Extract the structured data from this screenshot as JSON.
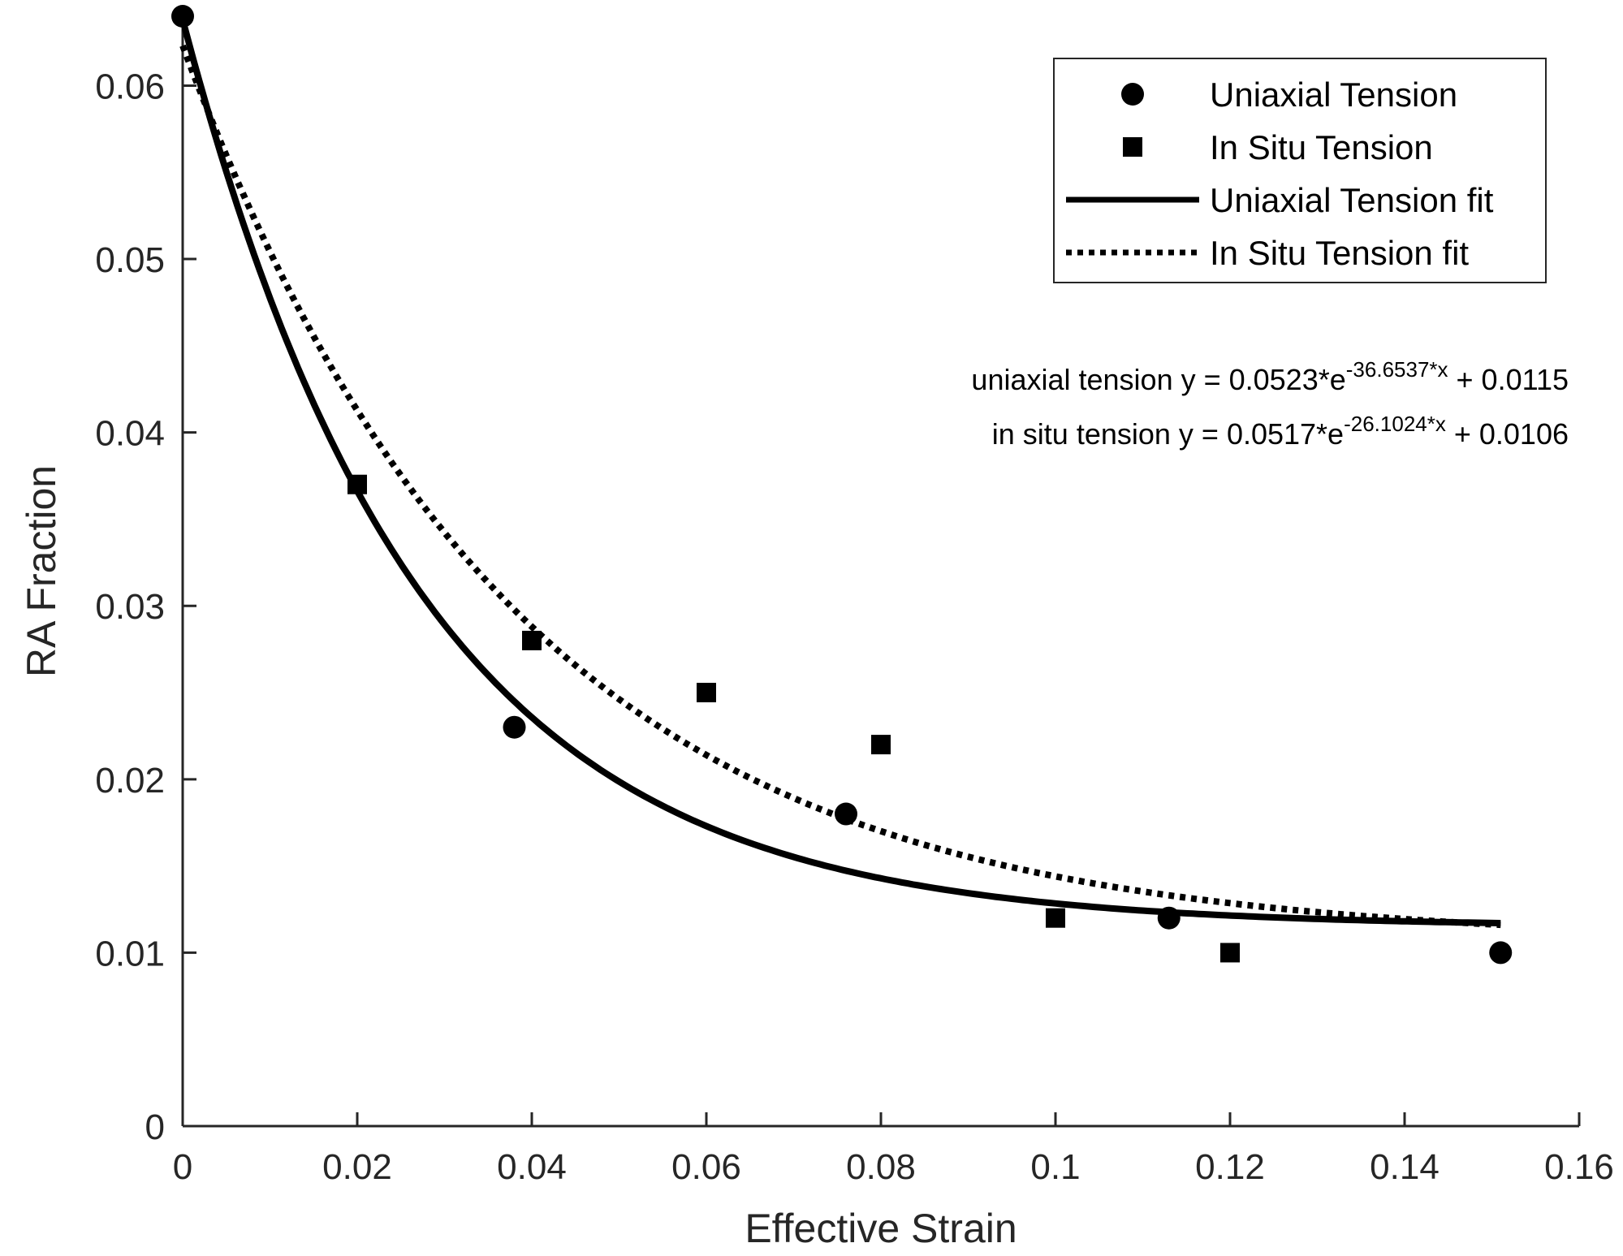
{
  "chart_data": {
    "type": "scatter",
    "xlabel": "Effective Strain",
    "ylabel": "RA Fraction",
    "xlim": [
      0,
      0.16
    ],
    "ylim": [
      0,
      0.064
    ],
    "x_ticks": [
      0,
      0.02,
      0.04,
      0.06,
      0.08,
      0.1,
      0.12,
      0.14,
      0.16
    ],
    "x_tick_labels": [
      "0",
      "0.02",
      "0.04",
      "0.06",
      "0.08",
      "0.1",
      "0.12",
      "0.14",
      "0.16"
    ],
    "y_ticks": [
      0,
      0.01,
      0.02,
      0.03,
      0.04,
      0.05,
      0.06
    ],
    "y_tick_labels": [
      "0",
      "0.01",
      "0.02",
      "0.03",
      "0.04",
      "0.05",
      "0.06"
    ],
    "grid": false,
    "legend_position": "top-right",
    "series": [
      {
        "name": "Uniaxial Tension",
        "kind": "scatter",
        "marker": "circle",
        "points": [
          [
            0,
            0.064
          ],
          [
            0.038,
            0.023
          ],
          [
            0.076,
            0.018
          ],
          [
            0.113,
            0.012
          ],
          [
            0.151,
            0.01
          ]
        ]
      },
      {
        "name": "In Situ Tension",
        "kind": "scatter",
        "marker": "square",
        "points": [
          [
            0.02,
            0.037
          ],
          [
            0.04,
            0.028
          ],
          [
            0.06,
            0.025
          ],
          [
            0.08,
            0.022
          ],
          [
            0.1,
            0.012
          ],
          [
            0.12,
            0.01
          ]
        ]
      },
      {
        "name": "Uniaxial Tension fit",
        "kind": "line",
        "style": "solid",
        "model": {
          "a": 0.0523,
          "b": -36.6537,
          "c": 0.0115
        },
        "x_range": [
          0,
          0.151
        ]
      },
      {
        "name": "In Situ Tension fit",
        "kind": "line",
        "style": "dotted",
        "model": {
          "a": 0.0517,
          "b": -26.1024,
          "c": 0.0106
        },
        "x_range": [
          0,
          0.151
        ]
      }
    ],
    "annotations": [
      {
        "prefix": "uniaxial tension y = 0.0523*e",
        "exponent": "-36.6537*x",
        "suffix": " + 0.0115"
      },
      {
        "prefix": "in situ tension y = 0.0517*e",
        "exponent": "-26.1024*x",
        "suffix": " + 0.0106"
      }
    ]
  }
}
